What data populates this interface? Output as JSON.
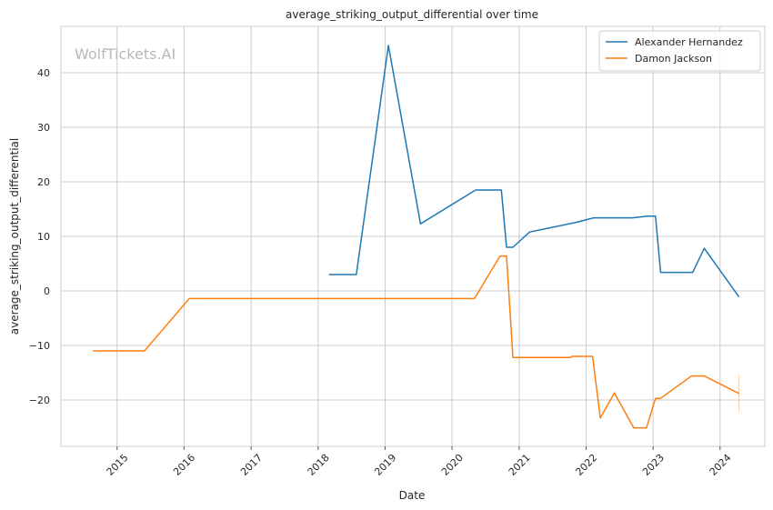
{
  "chart_data": {
    "type": "line",
    "title": "average_striking_output_differential over time",
    "xlabel": "Date",
    "ylabel": "average_striking_output_differential",
    "watermark": "WolfTickets.AI",
    "xlim": [
      "2014-03-01",
      "2024-09-01"
    ],
    "ylim": [
      -28.5,
      48.5
    ],
    "x_ticks": [
      "2015-01-01",
      "2016-01-01",
      "2017-01-01",
      "2018-01-01",
      "2019-01-01",
      "2020-01-01",
      "2021-01-01",
      "2022-01-01",
      "2023-01-01",
      "2024-01-01"
    ],
    "x_tick_labels": [
      "2015",
      "2016",
      "2017",
      "2018",
      "2019",
      "2020",
      "2021",
      "2022",
      "2023",
      "2024"
    ],
    "y_ticks": [
      -20,
      -10,
      0,
      10,
      20,
      30,
      40
    ],
    "y_tick_labels": [
      "−20",
      "−10",
      "0",
      "10",
      "20",
      "30",
      "40"
    ],
    "grid": true,
    "legend_position": "top-right",
    "series": [
      {
        "name": "Alexander Hernandez",
        "color": "#1f77b4",
        "points": [
          [
            "2018-03-01",
            3.0
          ],
          [
            "2018-07-28",
            3.0
          ],
          [
            "2019-01-19",
            45.0
          ],
          [
            "2019-07-13",
            12.3
          ],
          [
            "2020-05-09",
            18.5
          ],
          [
            "2020-09-26",
            18.5
          ],
          [
            "2020-10-24",
            8.0
          ],
          [
            "2020-11-28",
            8.0
          ],
          [
            "2021-02-27",
            10.8
          ],
          [
            "2021-10-30",
            12.5
          ],
          [
            "2022-02-12",
            13.4
          ],
          [
            "2022-09-10",
            13.4
          ],
          [
            "2022-12-03",
            13.7
          ],
          [
            "2023-01-14",
            13.7
          ],
          [
            "2023-02-11",
            3.4
          ],
          [
            "2023-08-05",
            3.4
          ],
          [
            "2023-10-07",
            7.8
          ],
          [
            "2024-04-13",
            -1.1
          ]
        ]
      },
      {
        "name": "Damon Jackson",
        "color": "#ff7f0e",
        "points": [
          [
            "2014-08-23",
            -11.0
          ],
          [
            "2015-05-30",
            -11.0
          ],
          [
            "2016-01-30",
            -1.4
          ],
          [
            "2020-05-02",
            -1.4
          ],
          [
            "2020-09-19",
            6.4
          ],
          [
            "2020-10-24",
            6.4
          ],
          [
            "2020-11-28",
            -12.2
          ],
          [
            "2021-10-09",
            -12.2
          ],
          [
            "2021-10-16",
            -12.0
          ],
          [
            "2022-02-05",
            -12.0
          ],
          [
            "2022-03-19",
            -23.3
          ],
          [
            "2022-06-04",
            -18.7
          ],
          [
            "2022-09-17",
            -25.1
          ],
          [
            "2022-11-26",
            -25.1
          ],
          [
            "2023-01-14",
            -19.7
          ],
          [
            "2023-02-11",
            -19.7
          ],
          [
            "2023-07-29",
            -15.6
          ],
          [
            "2023-10-07",
            -15.6
          ],
          [
            "2024-04-13",
            -18.8
          ]
        ],
        "error_bar": {
          "x": "2024-04-13",
          "low": -22.2,
          "high": -15.4
        }
      }
    ]
  }
}
